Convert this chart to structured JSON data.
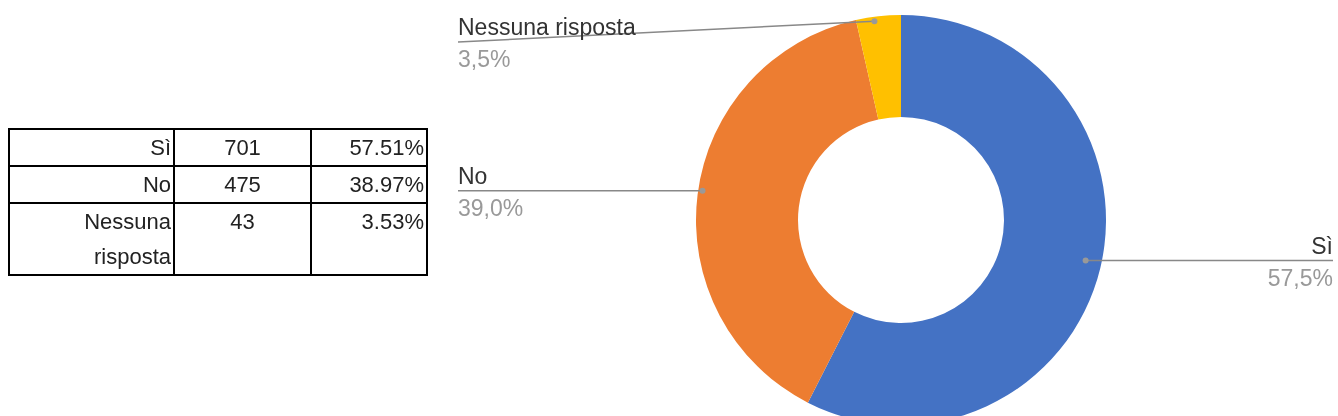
{
  "chart_data": {
    "type": "donut",
    "categories": [
      "Sì",
      "No",
      "Nessuna risposta"
    ],
    "values": [
      57.51,
      38.97,
      3.53
    ],
    "colors": [
      "#4472c4",
      "#ed7d31",
      "#ffc000"
    ],
    "value_labels": [
      "57,5%",
      "39,0%",
      "3,5%"
    ],
    "annotations": [
      "701",
      "475",
      "43",
      "57.51%",
      "38.97%",
      "3.53%"
    ]
  }
}
